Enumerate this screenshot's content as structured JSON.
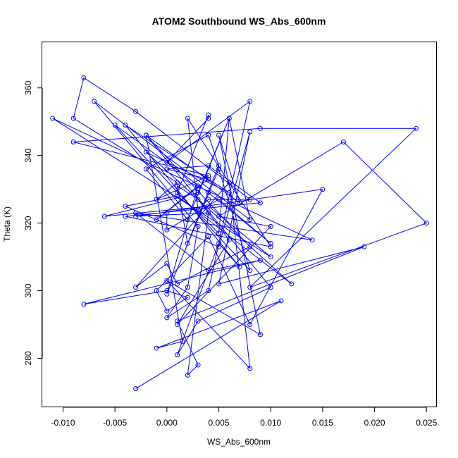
{
  "chart_data": {
    "type": "line",
    "title": "ATOM2 Southbound WS_Abs_600nm",
    "xlabel": "WS_Abs_600nm",
    "ylabel": "Theta (K)",
    "xlim": [
      -0.012,
      0.026
    ],
    "ylim": [
      265.5,
      373.5
    ],
    "x_ticks": [
      -0.01,
      -0.005,
      0.0,
      0.005,
      0.01,
      0.015,
      0.02,
      0.025
    ],
    "x_tick_labels": [
      "-0.010",
      "-0.005",
      "0.000",
      "0.005",
      "0.010",
      "0.015",
      "0.020",
      "0.025"
    ],
    "y_ticks": [
      280,
      300,
      320,
      340,
      360
    ],
    "y_tick_labels": [
      "280",
      "300",
      "320",
      "340",
      "360"
    ],
    "grid": false,
    "legend": "none",
    "series_color": "#0000ff",
    "marker": "open-circle",
    "series": [
      {
        "x": [
          -0.003,
          0.011,
          -0.001,
          0.0015,
          -0.002,
          0.007,
          0.005,
          0.009,
          0.0,
          0.008,
          0.006,
          -0.003,
          0.0,
          0.001,
          0.008,
          -0.002,
          0.01,
          0.003,
          0.001,
          0.005,
          0.007,
          -0.004,
          0.006,
          -0.002,
          0.012,
          0.001,
          -0.004,
          0.005,
          0.008,
          0.005,
          0.019,
          0.001,
          0.003,
          0.002,
          0.004,
          -0.003,
          0.015,
          0.008,
          0.004,
          -0.001,
          0.0,
          0.002,
          0.0,
          -0.008,
          0.009,
          0.004,
          -0.003,
          0.014,
          -0.011,
          0.01,
          0.004,
          -0.006,
          0.003,
          0.006,
          0.005,
          0.001,
          0.004,
          0.004,
          0.0,
          0.008,
          0.004,
          0.0,
          0.002,
          0.003,
          -0.007,
          0.008,
          0.006,
          0.002,
          -0.002,
          0.004,
          0.005,
          0.002,
          0.001,
          0.003,
          0.006,
          0.001,
          0.01,
          0.005,
          0.017,
          0.025,
          0.008,
          0.024,
          0.009,
          -0.009,
          0.004,
          -0.001,
          0.001,
          -0.009,
          -0.008,
          -0.003,
          0.008,
          0.004,
          0.003,
          0.002,
          0.01,
          -0.004,
          0.009,
          0.004,
          0.0,
          0.004,
          -0.001,
          0.003,
          0.0,
          0.005,
          0.008,
          -0.005,
          0.004,
          0.01,
          0.005,
          0.0,
          0.0
        ],
        "y": [
          271,
          297,
          283,
          285,
          346,
          326,
          346,
          287,
          303,
          277,
          332,
          301,
          308,
          302,
          313,
          346,
          301,
          291,
          281,
          314,
          307,
          349,
          329,
          341,
          302,
          328,
          325,
          313,
          347,
          302,
          313,
          291,
          278,
          275,
          323,
          322,
          330,
          290,
          316,
          300,
          294,
          298,
          300,
          296,
          309,
          306,
          323,
          315,
          351,
          310,
          325,
          322,
          329,
          351,
          317,
          329,
          352,
          351,
          338,
          356,
          300,
          292,
          301,
          319,
          356,
          321,
          351,
          321,
          336,
          346,
          337,
          314,
          331,
          327,
          315,
          290,
          319,
          322,
          344,
          320,
          301,
          348,
          348,
          344,
          334,
          327,
          332,
          351,
          363,
          353,
          327,
          327,
          324,
          351,
          313,
          322,
          326,
          337,
          336,
          333,
          321,
          331,
          299,
          336,
          306,
          349,
          329,
          314,
          327,
          318,
          323
        ]
      }
    ]
  }
}
